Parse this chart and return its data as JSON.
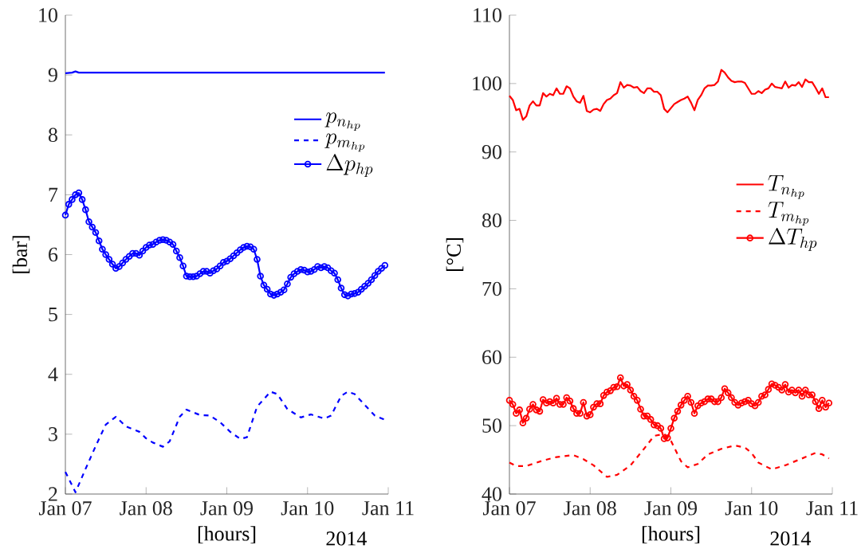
{
  "chart_data": [
    {
      "type": "line",
      "ylabel": "[bar]",
      "xlabel": "[hours]",
      "annotations": [
        "2014"
      ],
      "xlim": [
        "2014-01-07",
        "2014-01-11"
      ],
      "ylim": [
        2,
        10
      ],
      "yticks": [
        2,
        3,
        4,
        5,
        6,
        7,
        8,
        9,
        10
      ],
      "xticks": [
        {
          "value": "2014-01-07",
          "label": "Jan 07"
        },
        {
          "value": "2014-01-08",
          "label": "Jan 08"
        },
        {
          "value": "2014-01-09",
          "label": "Jan 09"
        },
        {
          "value": "2014-01-10",
          "label": "Jan 10"
        },
        {
          "value": "2014-01-11",
          "label": "Jan 11"
        }
      ],
      "legend": "top right",
      "grid": false,
      "x": [
        "2014-01-07T00:00",
        "2014-01-07T01:00",
        "2014-01-07T02:00",
        "2014-01-07T03:00",
        "2014-01-07T04:00",
        "2014-01-07T05:00",
        "2014-01-07T06:00",
        "2014-01-07T07:00",
        "2014-01-07T08:00",
        "2014-01-07T09:00",
        "2014-01-07T10:00",
        "2014-01-07T11:00",
        "2014-01-07T12:00",
        "2014-01-07T13:00",
        "2014-01-07T14:00",
        "2014-01-07T15:00",
        "2014-01-07T16:00",
        "2014-01-07T17:00",
        "2014-01-07T18:00",
        "2014-01-07T19:00",
        "2014-01-07T20:00",
        "2014-01-07T21:00",
        "2014-01-07T22:00",
        "2014-01-07T23:00",
        "2014-01-08T00:00",
        "2014-01-08T01:00",
        "2014-01-08T02:00",
        "2014-01-08T03:00",
        "2014-01-08T04:00",
        "2014-01-08T05:00",
        "2014-01-08T06:00",
        "2014-01-08T07:00",
        "2014-01-08T08:00",
        "2014-01-08T09:00",
        "2014-01-08T10:00",
        "2014-01-08T11:00",
        "2014-01-08T12:00",
        "2014-01-08T13:00",
        "2014-01-08T14:00",
        "2014-01-08T15:00",
        "2014-01-08T16:00",
        "2014-01-08T17:00",
        "2014-01-08T18:00",
        "2014-01-08T19:00",
        "2014-01-08T20:00",
        "2014-01-08T21:00",
        "2014-01-08T22:00",
        "2014-01-08T23:00",
        "2014-01-09T00:00",
        "2014-01-09T01:00",
        "2014-01-09T02:00",
        "2014-01-09T03:00",
        "2014-01-09T04:00",
        "2014-01-09T05:00",
        "2014-01-09T06:00",
        "2014-01-09T07:00",
        "2014-01-09T08:00",
        "2014-01-09T09:00",
        "2014-01-09T10:00",
        "2014-01-09T11:00",
        "2014-01-09T12:00",
        "2014-01-09T13:00",
        "2014-01-09T14:00",
        "2014-01-09T15:00",
        "2014-01-09T16:00",
        "2014-01-09T17:00",
        "2014-01-09T18:00",
        "2014-01-09T19:00",
        "2014-01-09T20:00",
        "2014-01-09T21:00",
        "2014-01-09T22:00",
        "2014-01-09T23:00",
        "2014-01-10T00:00",
        "2014-01-10T01:00",
        "2014-01-10T02:00",
        "2014-01-10T03:00",
        "2014-01-10T04:00",
        "2014-01-10T05:00",
        "2014-01-10T06:00",
        "2014-01-10T07:00",
        "2014-01-10T08:00",
        "2014-01-10T09:00",
        "2014-01-10T10:00",
        "2014-01-10T11:00",
        "2014-01-10T12:00",
        "2014-01-10T13:00",
        "2014-01-10T14:00",
        "2014-01-10T15:00",
        "2014-01-10T16:00",
        "2014-01-10T17:00",
        "2014-01-10T18:00",
        "2014-01-10T19:00",
        "2014-01-10T20:00",
        "2014-01-10T21:00",
        "2014-01-10T22:00",
        "2014-01-10T23:00"
      ],
      "series": [
        {
          "name": "p_{n_{hp}}",
          "color": "#0000ff",
          "line_style": "solid",
          "marker": "none",
          "x": [
            "2014-01-07T00:00",
            "2014-01-07T02:00",
            "2014-01-07T03:00",
            "2014-01-07T04:00",
            "2014-01-08T00:00",
            "2014-01-09T00:00",
            "2014-01-10T00:00",
            "2014-01-10T23:00"
          ],
          "values": [
            9.03,
            9.04,
            9.06,
            9.04,
            9.04,
            9.04,
            9.04,
            9.04
          ]
        },
        {
          "name": "p_{m_{hp}}",
          "color": "#0000ff",
          "line_style": "dashed",
          "marker": "none",
          "x": [
            "2014-01-07T00:00",
            "2014-01-07T03:00",
            "2014-01-07T06:00",
            "2014-01-07T09:00",
            "2014-01-07T12:00",
            "2014-01-07T15:00",
            "2014-01-07T18:00",
            "2014-01-07T22:00",
            "2014-01-08T00:00",
            "2014-01-08T02:00",
            "2014-01-08T05:00",
            "2014-01-08T07:00",
            "2014-01-08T10:00",
            "2014-01-08T12:00",
            "2014-01-08T16:00",
            "2014-01-08T19:00",
            "2014-01-08T22:00",
            "2014-01-09T01:00",
            "2014-01-09T04:00",
            "2014-01-09T06:00",
            "2014-01-09T09:00",
            "2014-01-09T13:00",
            "2014-01-09T15:00",
            "2014-01-09T18:00",
            "2014-01-09T22:00",
            "2014-01-10T01:00",
            "2014-01-10T05:00",
            "2014-01-10T07:00",
            "2014-01-10T10:00",
            "2014-01-10T12:00",
            "2014-01-10T14:00",
            "2014-01-10T17:00",
            "2014-01-10T20:00",
            "2014-01-10T23:00"
          ],
          "values": [
            2.37,
            2.03,
            2.42,
            2.8,
            3.16,
            3.29,
            3.13,
            3.04,
            2.93,
            2.86,
            2.79,
            2.88,
            3.29,
            3.41,
            3.32,
            3.31,
            3.2,
            3.04,
            2.92,
            2.95,
            3.46,
            3.71,
            3.67,
            3.42,
            3.28,
            3.33,
            3.26,
            3.31,
            3.64,
            3.71,
            3.67,
            3.49,
            3.31,
            3.24
          ]
        },
        {
          "name": "\\Delta p_{hp}",
          "color": "#0000ff",
          "line_style": "solid",
          "marker": "circle",
          "values": [
            6.66,
            6.84,
            6.92,
            7.0,
            7.03,
            6.92,
            6.75,
            6.55,
            6.46,
            6.37,
            6.23,
            6.09,
            6.0,
            5.92,
            5.84,
            5.77,
            5.8,
            5.86,
            5.92,
            5.97,
            6.02,
            6.02,
            5.99,
            6.06,
            6.12,
            6.16,
            6.17,
            6.21,
            6.24,
            6.25,
            6.24,
            6.21,
            6.17,
            6.06,
            5.95,
            5.81,
            5.64,
            5.63,
            5.63,
            5.64,
            5.68,
            5.72,
            5.72,
            5.69,
            5.73,
            5.76,
            5.81,
            5.87,
            5.89,
            5.93,
            5.98,
            6.03,
            6.08,
            6.12,
            6.14,
            6.13,
            6.09,
            5.92,
            5.64,
            5.49,
            5.42,
            5.34,
            5.32,
            5.34,
            5.37,
            5.41,
            5.51,
            5.62,
            5.68,
            5.72,
            5.75,
            5.74,
            5.71,
            5.72,
            5.75,
            5.8,
            5.78,
            5.8,
            5.78,
            5.73,
            5.69,
            5.58,
            5.44,
            5.33,
            5.31,
            5.34,
            5.35,
            5.37,
            5.42,
            5.47,
            5.52,
            5.58,
            5.65,
            5.72,
            5.77,
            5.82
          ]
        }
      ]
    },
    {
      "type": "line",
      "ylabel": "[°C]",
      "xlabel": "[hours]",
      "annotations": [
        "2014"
      ],
      "xlim": [
        "2014-01-07",
        "2014-01-11"
      ],
      "ylim": [
        40,
        110
      ],
      "yticks": [
        40,
        50,
        60,
        70,
        80,
        90,
        100,
        110
      ],
      "xticks": [
        {
          "value": "2014-01-07",
          "label": "Jan 07"
        },
        {
          "value": "2014-01-08",
          "label": "Jan 08"
        },
        {
          "value": "2014-01-09",
          "label": "Jan 09"
        },
        {
          "value": "2014-01-10",
          "label": "Jan 10"
        },
        {
          "value": "2014-01-11",
          "label": "Jan 11"
        }
      ],
      "legend": "right",
      "grid": false,
      "x": [
        "2014-01-07T00:00",
        "2014-01-07T01:00",
        "2014-01-07T02:00",
        "2014-01-07T03:00",
        "2014-01-07T04:00",
        "2014-01-07T05:00",
        "2014-01-07T06:00",
        "2014-01-07T07:00",
        "2014-01-07T08:00",
        "2014-01-07T09:00",
        "2014-01-07T10:00",
        "2014-01-07T11:00",
        "2014-01-07T12:00",
        "2014-01-07T13:00",
        "2014-01-07T14:00",
        "2014-01-07T15:00",
        "2014-01-07T16:00",
        "2014-01-07T17:00",
        "2014-01-07T18:00",
        "2014-01-07T19:00",
        "2014-01-07T20:00",
        "2014-01-07T21:00",
        "2014-01-07T22:00",
        "2014-01-07T23:00",
        "2014-01-08T00:00",
        "2014-01-08T01:00",
        "2014-01-08T02:00",
        "2014-01-08T03:00",
        "2014-01-08T04:00",
        "2014-01-08T05:00",
        "2014-01-08T06:00",
        "2014-01-08T07:00",
        "2014-01-08T08:00",
        "2014-01-08T09:00",
        "2014-01-08T10:00",
        "2014-01-08T11:00",
        "2014-01-08T12:00",
        "2014-01-08T13:00",
        "2014-01-08T14:00",
        "2014-01-08T15:00",
        "2014-01-08T16:00",
        "2014-01-08T17:00",
        "2014-01-08T18:00",
        "2014-01-08T19:00",
        "2014-01-08T20:00",
        "2014-01-08T21:00",
        "2014-01-08T22:00",
        "2014-01-08T23:00",
        "2014-01-09T00:00",
        "2014-01-09T01:00",
        "2014-01-09T02:00",
        "2014-01-09T03:00",
        "2014-01-09T04:00",
        "2014-01-09T05:00",
        "2014-01-09T06:00",
        "2014-01-09T07:00",
        "2014-01-09T08:00",
        "2014-01-09T09:00",
        "2014-01-09T10:00",
        "2014-01-09T11:00",
        "2014-01-09T12:00",
        "2014-01-09T13:00",
        "2014-01-09T14:00",
        "2014-01-09T15:00",
        "2014-01-09T16:00",
        "2014-01-09T17:00",
        "2014-01-09T18:00",
        "2014-01-09T19:00",
        "2014-01-09T20:00",
        "2014-01-09T21:00",
        "2014-01-09T22:00",
        "2014-01-09T23:00",
        "2014-01-10T00:00",
        "2014-01-10T01:00",
        "2014-01-10T02:00",
        "2014-01-10T03:00",
        "2014-01-10T04:00",
        "2014-01-10T05:00",
        "2014-01-10T06:00",
        "2014-01-10T07:00",
        "2014-01-10T08:00",
        "2014-01-10T09:00",
        "2014-01-10T10:00",
        "2014-01-10T11:00",
        "2014-01-10T12:00",
        "2014-01-10T13:00",
        "2014-01-10T14:00",
        "2014-01-10T15:00",
        "2014-01-10T16:00",
        "2014-01-10T17:00",
        "2014-01-10T18:00",
        "2014-01-10T19:00",
        "2014-01-10T20:00",
        "2014-01-10T21:00",
        "2014-01-10T22:00",
        "2014-01-10T23:00"
      ],
      "series": [
        {
          "name": "T_{n_{hp}}",
          "color": "#ff0000",
          "line_style": "solid",
          "marker": "none",
          "values": [
            98.2,
            97.6,
            96.1,
            96.3,
            94.7,
            95.2,
            96.8,
            97.4,
            96.8,
            96.8,
            98.6,
            98.1,
            98.5,
            98.3,
            99.3,
            98.5,
            98.5,
            99.6,
            99.3,
            98.1,
            97.4,
            97.2,
            98.2,
            96.0,
            95.8,
            96.2,
            96.3,
            96.0,
            97.0,
            97.6,
            97.8,
            98.3,
            98.6,
            100.2,
            99.4,
            99.8,
            99.7,
            99.4,
            99.5,
            98.9,
            98.6,
            99.3,
            99.3,
            98.8,
            98.8,
            98.3,
            96.3,
            95.8,
            96.4,
            97.0,
            97.3,
            97.6,
            97.8,
            98.1,
            97.2,
            96.1,
            97.6,
            98.3,
            99.3,
            99.7,
            99.7,
            99.8,
            100.3,
            102.0,
            101.6,
            100.9,
            100.4,
            100.2,
            100.3,
            100.3,
            100.1,
            99.3,
            98.5,
            98.5,
            98.9,
            98.6,
            99.1,
            99.3,
            100.0,
            99.5,
            99.4,
            99.3,
            100.3,
            99.4,
            99.8,
            99.7,
            100.2,
            99.5,
            100.6,
            100.2,
            100.2,
            99.4,
            98.5,
            99.3,
            98.0,
            98.0
          ]
        },
        {
          "name": "T_{m_{hp}}",
          "color": "#ff0000",
          "line_style": "dashed",
          "marker": "none",
          "x": [
            "2014-01-07T00:00",
            "2014-01-07T02:00",
            "2014-01-07T05:00",
            "2014-01-07T10:00",
            "2014-01-07T14:00",
            "2014-01-07T19:00",
            "2014-01-07T22:00",
            "2014-01-08T01:00",
            "2014-01-08T05:00",
            "2014-01-08T08:00",
            "2014-01-08T12:00",
            "2014-01-08T16:00",
            "2014-01-08T19:00",
            "2014-01-08T22:00",
            "2014-01-09T00:00",
            "2014-01-09T03:00",
            "2014-01-09T05:00",
            "2014-01-09T08:00",
            "2014-01-09T11:00",
            "2014-01-09T15:00",
            "2014-01-09T19:00",
            "2014-01-09T22:00",
            "2014-01-10T00:00",
            "2014-01-10T02:00",
            "2014-01-10T06:00",
            "2014-01-10T10:00",
            "2014-01-10T14:00",
            "2014-01-10T19:00",
            "2014-01-10T21:00",
            "2014-01-10T23:00"
          ],
          "values": [
            44.6,
            44.1,
            44.1,
            44.9,
            45.4,
            45.7,
            45.1,
            44.2,
            42.5,
            42.8,
            44.2,
            46.6,
            48.5,
            48.8,
            47.8,
            44.8,
            43.9,
            44.4,
            45.8,
            46.6,
            47.1,
            46.8,
            46.0,
            44.6,
            43.6,
            44.2,
            45.0,
            46.0,
            45.8,
            45.2
          ]
        },
        {
          "name": "\\Delta T_{hp}",
          "color": "#ff0000",
          "line_style": "solid",
          "marker": "circle",
          "values": [
            53.7,
            53.1,
            51.8,
            52.3,
            50.4,
            51.1,
            52.4,
            53.1,
            52.3,
            52.1,
            53.8,
            53.3,
            53.5,
            53.3,
            54.0,
            53.1,
            53.1,
            54.1,
            53.6,
            52.5,
            51.8,
            51.8,
            53.4,
            51.4,
            51.6,
            52.7,
            53.2,
            53.2,
            54.4,
            54.9,
            55.1,
            55.6,
            55.7,
            57.0,
            55.8,
            56.0,
            55.2,
            54.3,
            53.7,
            52.4,
            51.4,
            51.4,
            50.9,
            50.1,
            50.0,
            49.6,
            48.1,
            48.2,
            49.6,
            51.1,
            52.1,
            53.0,
            53.7,
            54.3,
            53.4,
            51.8,
            52.9,
            53.3,
            53.5,
            53.9,
            53.9,
            53.5,
            53.5,
            54.1,
            55.4,
            54.8,
            54.1,
            53.4,
            53.0,
            53.3,
            53.5,
            53.7,
            53.2,
            52.9,
            53.4,
            54.3,
            54.5,
            55.3,
            56.1,
            55.9,
            55.6,
            55.2,
            56.0,
            54.9,
            55.2,
            54.8,
            55.2,
            54.3,
            55.2,
            54.5,
            54.5,
            53.5,
            52.5,
            53.7,
            52.7,
            53.3
          ]
        }
      ]
    }
  ]
}
